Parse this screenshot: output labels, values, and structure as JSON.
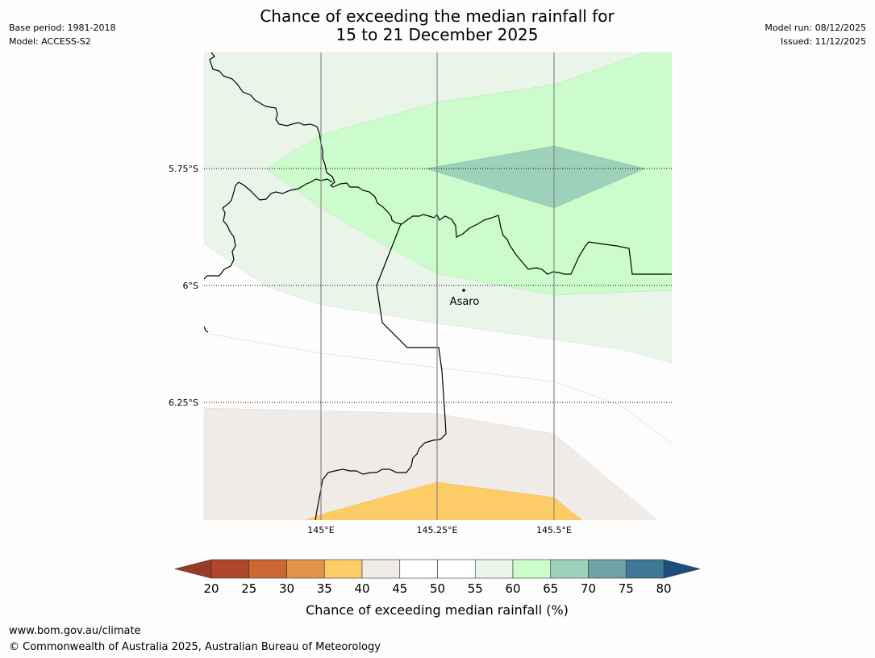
{
  "title_line1": "Chance of exceeding the median rainfall for",
  "title_line2": "15 to 21 December 2025",
  "base_period": "Base period: 1981-2018",
  "model": "Model: ACCESS-S2",
  "model_run": "Model run: 08/12/2025",
  "issued": "Issued: 11/12/2025",
  "lat_labels": [
    "5.75°S",
    "6°S",
    "6.25°S"
  ],
  "lon_labels": [
    "145°E",
    "145.25°E",
    "145.5°E"
  ],
  "place_label": "Asaro",
  "colorbar": {
    "ticks": [
      "20",
      "25",
      "30",
      "35",
      "40",
      "45",
      "50",
      "55",
      "60",
      "65",
      "70",
      "75",
      "80"
    ],
    "colors": [
      "#b0462a",
      "#cc6633",
      "#e0944a",
      "#fecc66",
      "#f0ebe6",
      "#ffffff",
      "#ffffff",
      "#eaf5ea",
      "#ccfccc",
      "#9ed1ba",
      "#6fa3a6",
      "#3f7797"
    ],
    "under_color": "#983a26",
    "over_color": "#1c4e82",
    "label": "Chance of exceeding median rainfall (%)"
  },
  "footer_url": "www.bom.gov.au/climate",
  "footer_copyright": "© Commonwealth of Australia 2025, Australian Bureau of Meteorology"
}
